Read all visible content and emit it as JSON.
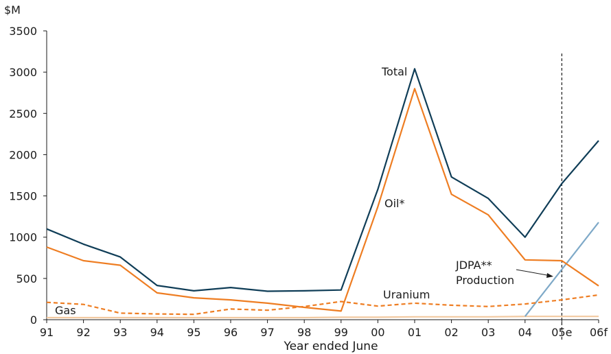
{
  "chart_data": {
    "type": "line",
    "unit_label": "$M",
    "xlabel": "Year ended June",
    "ylim": [
      0,
      3500
    ],
    "yticks": [
      0,
      500,
      1000,
      1500,
      2000,
      2500,
      3000,
      3500
    ],
    "categories": [
      "91",
      "92",
      "93",
      "94",
      "95",
      "96",
      "97",
      "98",
      "99",
      "00",
      "01",
      "02",
      "03",
      "04",
      "05e",
      "06f"
    ],
    "grid": false,
    "legend": "none (series labelled directly on chart)",
    "series": [
      {
        "name": "Total",
        "color": "#0f3d57",
        "style": "solid",
        "values": [
          1100,
          915,
          760,
          415,
          350,
          390,
          345,
          350,
          360,
          1580,
          3040,
          1730,
          1470,
          1000,
          1650,
          2170
        ]
      },
      {
        "name": "Oil*",
        "color": "#ee7d22",
        "style": "solid",
        "values": [
          880,
          715,
          660,
          325,
          265,
          240,
          200,
          150,
          105,
          1370,
          2800,
          1520,
          1270,
          725,
          715,
          410
        ]
      },
      {
        "name": "Uranium",
        "color": "#ee7d22",
        "style": "dashed",
        "values": [
          210,
          185,
          80,
          70,
          65,
          130,
          115,
          160,
          220,
          165,
          200,
          175,
          160,
          190,
          240,
          300
        ]
      },
      {
        "name": "Gas",
        "color": "#f2c9a0",
        "style": "solid",
        "values": [
          25,
          25,
          25,
          25,
          25,
          25,
          25,
          25,
          30,
          30,
          35,
          35,
          35,
          40,
          40,
          40
        ]
      },
      {
        "name": "JDPA** Production",
        "color": "#7ea9c8",
        "style": "solid",
        "x": [
          "04",
          "06f"
        ],
        "values": [
          40,
          1180
        ]
      }
    ],
    "annotations": {
      "total": "Total",
      "oil": "Oil*",
      "uranium": "Uranium",
      "gas": "Gas",
      "jdpa_line1": "JDPA**",
      "jdpa_line2": "Production"
    },
    "marker_line": {
      "at": "05e",
      "style": "dashed",
      "color": "#1a1a1a"
    }
  }
}
